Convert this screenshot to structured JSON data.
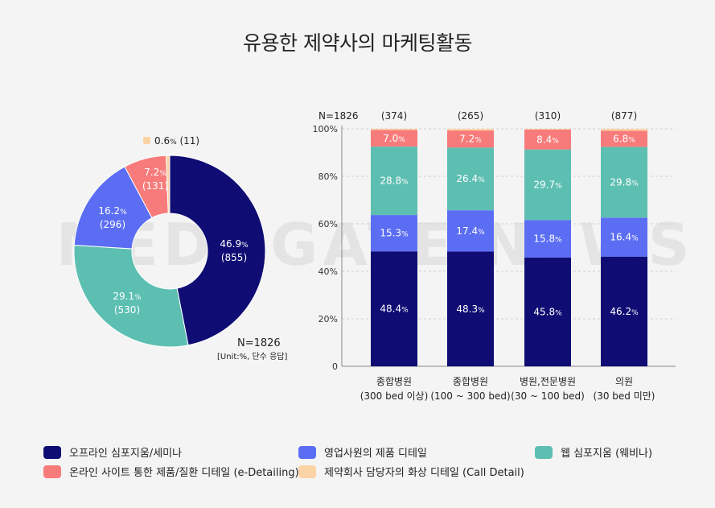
{
  "title": "유용한 제약사의 마케팅활동",
  "watermark": "MEDI:GATE NEWS",
  "colors": {
    "offline": "#0f0c74",
    "sales": "#5b6ef3",
    "web": "#5dbfb2",
    "online": "#f77b7b",
    "call": "#fcd3a4"
  },
  "legend": [
    {
      "key": "offline",
      "label": "오프라인 심포지움/세미나"
    },
    {
      "key": "sales",
      "label": "영업사원의 제품 디테일"
    },
    {
      "key": "web",
      "label": "웹 심포지움 (웨비나)"
    },
    {
      "key": "online",
      "label": "온라인 사이트 통한 제품/질환 디테일 (e-Detailing)"
    },
    {
      "key": "call",
      "label": "제약회사 담당자의 화상 디테일 (Call Detail)"
    }
  ],
  "chart_data": [
    {
      "type": "pie",
      "variant": "donut",
      "n_label": "N=1826",
      "unit_note": "[Unit:%, 단수 응답]",
      "slices": [
        {
          "key": "offline",
          "value": 46.9,
          "count": "(855)"
        },
        {
          "key": "web",
          "value": 29.1,
          "count": "(530)"
        },
        {
          "key": "sales",
          "value": 16.2,
          "count": "(296)"
        },
        {
          "key": "online",
          "value": 7.2,
          "count": "(131)"
        },
        {
          "key": "call",
          "value": 0.6,
          "count": "(11)"
        }
      ]
    },
    {
      "type": "bar",
      "stacked": true,
      "n_label": "N=1826",
      "ylim": [
        0,
        100
      ],
      "yticks": [
        "0",
        "20%",
        "40%",
        "60%",
        "80%",
        "100%"
      ],
      "categories": [
        {
          "line1": "종합병원",
          "line2": "(300 bed 이상)",
          "n": "(374)"
        },
        {
          "line1": "종합병원",
          "line2": "(100 ~ 300 bed)",
          "n": "(265)"
        },
        {
          "line1": "병원,전문병원",
          "line2": "(30 ~ 100 bed)",
          "n": "(310)"
        },
        {
          "line1": "의원",
          "line2": "(30 bed 미만)",
          "n": "(877)"
        }
      ],
      "series": [
        {
          "key": "offline",
          "values": [
            48.4,
            48.3,
            45.8,
            46.2
          ]
        },
        {
          "key": "sales",
          "values": [
            15.3,
            17.4,
            15.8,
            16.4
          ]
        },
        {
          "key": "web",
          "values": [
            28.8,
            26.4,
            29.7,
            29.8
          ]
        },
        {
          "key": "online",
          "values": [
            7.0,
            7.2,
            8.4,
            6.8
          ]
        },
        {
          "key": "call",
          "values": [
            0.5,
            0.7,
            0.3,
            0.8
          ]
        }
      ]
    }
  ]
}
